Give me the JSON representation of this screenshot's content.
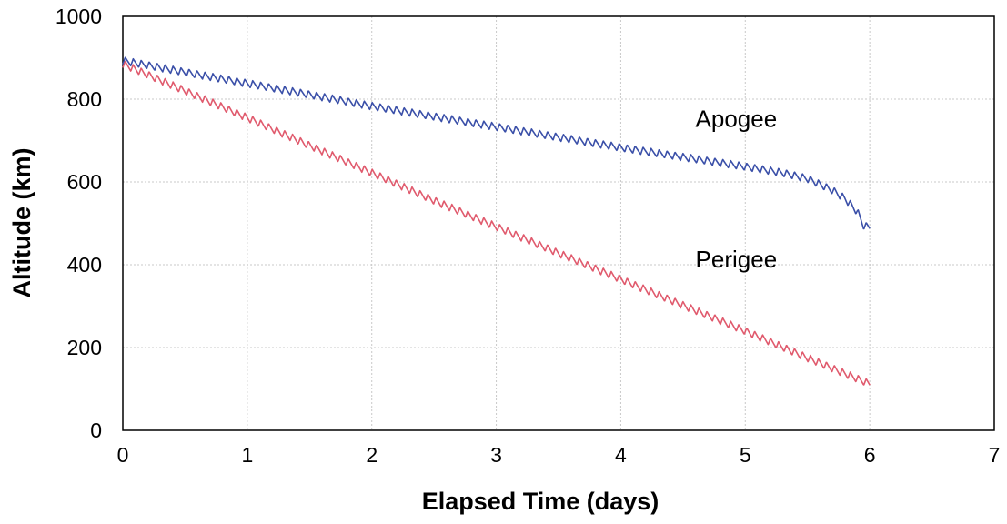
{
  "chart_data": {
    "type": "line",
    "title": "",
    "xlabel": "Elapsed Time (days)",
    "ylabel": "Altitude (km)",
    "xlim": [
      0,
      7
    ],
    "ylim": [
      0,
      1000
    ],
    "xticks": [
      0,
      1,
      2,
      3,
      4,
      5,
      6,
      7
    ],
    "yticks": [
      0,
      200,
      400,
      600,
      800,
      1000
    ],
    "grid": true,
    "legend": "none",
    "series": [
      {
        "name": "Apogee",
        "color": "#3a4fa8",
        "oscillation_amplitude": 9,
        "oscillation_period_days": 0.064,
        "x": [
          0,
          0.5,
          1,
          1.5,
          2,
          2.5,
          3,
          3.5,
          4,
          4.5,
          5,
          5.3,
          5.5,
          5.7,
          5.8,
          5.9,
          5.95,
          6.0
        ],
        "y": [
          893,
          865,
          838,
          811,
          783,
          758,
          733,
          708,
          683,
          660,
          637,
          622,
          608,
          580,
          560,
          528,
          495,
          490
        ]
      },
      {
        "name": "Perigee",
        "color": "#e05a6d",
        "oscillation_amplitude": 9,
        "oscillation_period_days": 0.064,
        "x": [
          0,
          0.5,
          1,
          1.5,
          2,
          2.5,
          3,
          3.5,
          4,
          4.5,
          5,
          5.5,
          6.0
        ],
        "y": [
          885,
          820,
          755,
          688,
          622,
          555,
          492,
          428,
          365,
          302,
          240,
          175,
          112
        ]
      }
    ],
    "annotations": [
      {
        "text": "Apogee",
        "x": 4.6,
        "y": 733
      },
      {
        "text": "Perigee",
        "x": 4.6,
        "y": 393
      }
    ]
  }
}
